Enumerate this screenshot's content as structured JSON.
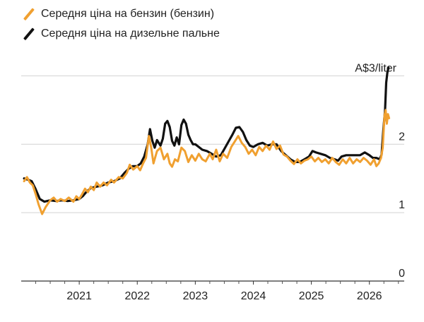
{
  "chart_data": {
    "type": "line",
    "title": "",
    "xlabel": "",
    "ylabel": "",
    "y_unit_label": "A$3/liter",
    "ylim": [
      0,
      3.2
    ],
    "xlim": [
      2020.0,
      2026.6
    ],
    "grid": true,
    "legend_position": "top-left",
    "x_ticks": [
      {
        "label": "2021",
        "value": 2021.0
      },
      {
        "label": "2022",
        "value": 2022.0
      },
      {
        "label": "2023",
        "value": 2023.0
      },
      {
        "label": "2024",
        "value": 2024.0
      },
      {
        "label": "2025",
        "value": 2025.0
      },
      {
        "label": "2026",
        "value": 2026.0
      }
    ],
    "y_ticks": [
      {
        "label": "0",
        "value": 0
      },
      {
        "label": "1",
        "value": 1
      },
      {
        "label": "2",
        "value": 2
      },
      {
        "label": "A$3/liter",
        "value": 3
      }
    ],
    "series": [
      {
        "name": "Середня ціна на бензин (бензин)",
        "color": "#f0a030",
        "points": [
          [
            2020.05,
            1.46
          ],
          [
            2020.1,
            1.52
          ],
          [
            2020.15,
            1.44
          ],
          [
            2020.2,
            1.4
          ],
          [
            2020.25,
            1.27
          ],
          [
            2020.3,
            1.12
          ],
          [
            2020.36,
            0.98
          ],
          [
            2020.42,
            1.08
          ],
          [
            2020.5,
            1.18
          ],
          [
            2020.56,
            1.22
          ],
          [
            2020.62,
            1.16
          ],
          [
            2020.68,
            1.2
          ],
          [
            2020.75,
            1.17
          ],
          [
            2020.82,
            1.22
          ],
          [
            2020.9,
            1.16
          ],
          [
            2020.95,
            1.24
          ],
          [
            2021.0,
            1.2
          ],
          [
            2021.05,
            1.27
          ],
          [
            2021.1,
            1.35
          ],
          [
            2021.15,
            1.3
          ],
          [
            2021.2,
            1.38
          ],
          [
            2021.25,
            1.33
          ],
          [
            2021.3,
            1.44
          ],
          [
            2021.36,
            1.38
          ],
          [
            2021.42,
            1.44
          ],
          [
            2021.48,
            1.4
          ],
          [
            2021.55,
            1.48
          ],
          [
            2021.6,
            1.44
          ],
          [
            2021.68,
            1.52
          ],
          [
            2021.75,
            1.5
          ],
          [
            2021.82,
            1.58
          ],
          [
            2021.87,
            1.7
          ],
          [
            2021.93,
            1.63
          ],
          [
            2022.0,
            1.68
          ],
          [
            2022.05,
            1.62
          ],
          [
            2022.1,
            1.72
          ],
          [
            2022.15,
            1.8
          ],
          [
            2022.2,
            2.12
          ],
          [
            2022.24,
            1.95
          ],
          [
            2022.28,
            1.72
          ],
          [
            2022.34,
            1.9
          ],
          [
            2022.4,
            1.95
          ],
          [
            2022.46,
            1.78
          ],
          [
            2022.52,
            1.86
          ],
          [
            2022.56,
            1.72
          ],
          [
            2022.6,
            1.67
          ],
          [
            2022.65,
            1.78
          ],
          [
            2022.7,
            1.75
          ],
          [
            2022.76,
            1.95
          ],
          [
            2022.82,
            1.9
          ],
          [
            2022.88,
            1.74
          ],
          [
            2022.94,
            1.84
          ],
          [
            2023.0,
            1.76
          ],
          [
            2023.06,
            1.86
          ],
          [
            2023.12,
            1.78
          ],
          [
            2023.18,
            1.75
          ],
          [
            2023.25,
            1.86
          ],
          [
            2023.3,
            1.78
          ],
          [
            2023.36,
            1.92
          ],
          [
            2023.42,
            1.75
          ],
          [
            2023.48,
            1.86
          ],
          [
            2023.55,
            1.8
          ],
          [
            2023.62,
            1.96
          ],
          [
            2023.68,
            2.04
          ],
          [
            2023.74,
            2.12
          ],
          [
            2023.8,
            2.02
          ],
          [
            2023.86,
            1.96
          ],
          [
            2023.92,
            1.86
          ],
          [
            2023.98,
            1.92
          ],
          [
            2024.04,
            1.84
          ],
          [
            2024.1,
            1.96
          ],
          [
            2024.16,
            1.9
          ],
          [
            2024.22,
            1.98
          ],
          [
            2024.28,
            1.92
          ],
          [
            2024.34,
            2.04
          ],
          [
            2024.4,
            1.93
          ],
          [
            2024.46,
            1.98
          ],
          [
            2024.52,
            1.85
          ],
          [
            2024.58,
            1.82
          ],
          [
            2024.64,
            1.76
          ],
          [
            2024.7,
            1.71
          ],
          [
            2024.76,
            1.78
          ],
          [
            2024.82,
            1.72
          ],
          [
            2024.88,
            1.76
          ],
          [
            2024.94,
            1.78
          ],
          [
            2025.0,
            1.82
          ],
          [
            2025.06,
            1.75
          ],
          [
            2025.12,
            1.8
          ],
          [
            2025.18,
            1.74
          ],
          [
            2025.24,
            1.78
          ],
          [
            2025.3,
            1.72
          ],
          [
            2025.36,
            1.8
          ],
          [
            2025.42,
            1.74
          ],
          [
            2025.48,
            1.7
          ],
          [
            2025.54,
            1.78
          ],
          [
            2025.6,
            1.72
          ],
          [
            2025.66,
            1.8
          ],
          [
            2025.72,
            1.72
          ],
          [
            2025.78,
            1.78
          ],
          [
            2025.84,
            1.74
          ],
          [
            2025.9,
            1.8
          ],
          [
            2025.96,
            1.76
          ],
          [
            2026.02,
            1.7
          ],
          [
            2026.08,
            1.78
          ],
          [
            2026.12,
            1.68
          ],
          [
            2026.16,
            1.72
          ],
          [
            2026.2,
            1.8
          ],
          [
            2026.23,
            1.95
          ],
          [
            2026.26,
            2.42
          ],
          [
            2026.28,
            2.5
          ],
          [
            2026.3,
            2.3
          ],
          [
            2026.32,
            2.44
          ],
          [
            2026.34,
            2.38
          ]
        ]
      },
      {
        "name": "Середня ціна на дизельне пальне",
        "color": "#111111",
        "points": [
          [
            2020.05,
            1.5
          ],
          [
            2020.12,
            1.48
          ],
          [
            2020.18,
            1.46
          ],
          [
            2020.24,
            1.36
          ],
          [
            2020.32,
            1.2
          ],
          [
            2020.4,
            1.16
          ],
          [
            2020.5,
            1.18
          ],
          [
            2020.6,
            1.17
          ],
          [
            2020.7,
            1.18
          ],
          [
            2020.8,
            1.17
          ],
          [
            2020.9,
            1.18
          ],
          [
            2021.0,
            1.2
          ],
          [
            2021.06,
            1.24
          ],
          [
            2021.12,
            1.3
          ],
          [
            2021.2,
            1.36
          ],
          [
            2021.3,
            1.38
          ],
          [
            2021.4,
            1.4
          ],
          [
            2021.5,
            1.44
          ],
          [
            2021.6,
            1.46
          ],
          [
            2021.7,
            1.5
          ],
          [
            2021.78,
            1.58
          ],
          [
            2021.85,
            1.64
          ],
          [
            2021.92,
            1.68
          ],
          [
            2022.0,
            1.68
          ],
          [
            2022.06,
            1.72
          ],
          [
            2022.12,
            1.82
          ],
          [
            2022.18,
            2.0
          ],
          [
            2022.22,
            2.22
          ],
          [
            2022.26,
            2.05
          ],
          [
            2022.3,
            1.95
          ],
          [
            2022.34,
            2.06
          ],
          [
            2022.4,
            1.98
          ],
          [
            2022.44,
            2.08
          ],
          [
            2022.48,
            2.3
          ],
          [
            2022.52,
            2.34
          ],
          [
            2022.56,
            2.25
          ],
          [
            2022.6,
            2.05
          ],
          [
            2022.64,
            1.98
          ],
          [
            2022.68,
            2.1
          ],
          [
            2022.72,
            2.0
          ],
          [
            2022.76,
            2.28
          ],
          [
            2022.8,
            2.36
          ],
          [
            2022.84,
            2.3
          ],
          [
            2022.88,
            2.14
          ],
          [
            2022.92,
            2.06
          ],
          [
            2022.96,
            2.0
          ],
          [
            2023.0,
            2.0
          ],
          [
            2023.06,
            1.96
          ],
          [
            2023.12,
            1.92
          ],
          [
            2023.2,
            1.9
          ],
          [
            2023.28,
            1.86
          ],
          [
            2023.36,
            1.82
          ],
          [
            2023.44,
            1.84
          ],
          [
            2023.52,
            1.96
          ],
          [
            2023.58,
            2.05
          ],
          [
            2023.64,
            2.14
          ],
          [
            2023.7,
            2.24
          ],
          [
            2023.76,
            2.25
          ],
          [
            2023.82,
            2.18
          ],
          [
            2023.88,
            2.06
          ],
          [
            2023.94,
            1.98
          ],
          [
            2024.0,
            1.96
          ],
          [
            2024.08,
            2.0
          ],
          [
            2024.16,
            2.02
          ],
          [
            2024.24,
            1.98
          ],
          [
            2024.32,
            2.0
          ],
          [
            2024.4,
            2.0
          ],
          [
            2024.48,
            1.9
          ],
          [
            2024.56,
            1.84
          ],
          [
            2024.64,
            1.78
          ],
          [
            2024.72,
            1.74
          ],
          [
            2024.8,
            1.74
          ],
          [
            2024.88,
            1.78
          ],
          [
            2024.96,
            1.82
          ],
          [
            2025.02,
            1.9
          ],
          [
            2025.08,
            1.88
          ],
          [
            2025.16,
            1.86
          ],
          [
            2025.24,
            1.84
          ],
          [
            2025.32,
            1.8
          ],
          [
            2025.4,
            1.78
          ],
          [
            2025.46,
            1.76
          ],
          [
            2025.52,
            1.82
          ],
          [
            2025.6,
            1.84
          ],
          [
            2025.68,
            1.84
          ],
          [
            2025.76,
            1.84
          ],
          [
            2025.84,
            1.84
          ],
          [
            2025.92,
            1.88
          ],
          [
            2026.0,
            1.84
          ],
          [
            2026.06,
            1.8
          ],
          [
            2026.12,
            1.8
          ],
          [
            2026.18,
            1.78
          ],
          [
            2026.21,
            1.85
          ],
          [
            2026.24,
            2.2
          ],
          [
            2026.27,
            2.5
          ],
          [
            2026.29,
            2.9
          ],
          [
            2026.31,
            3.05
          ],
          [
            2026.33,
            3.12
          ]
        ]
      }
    ]
  }
}
